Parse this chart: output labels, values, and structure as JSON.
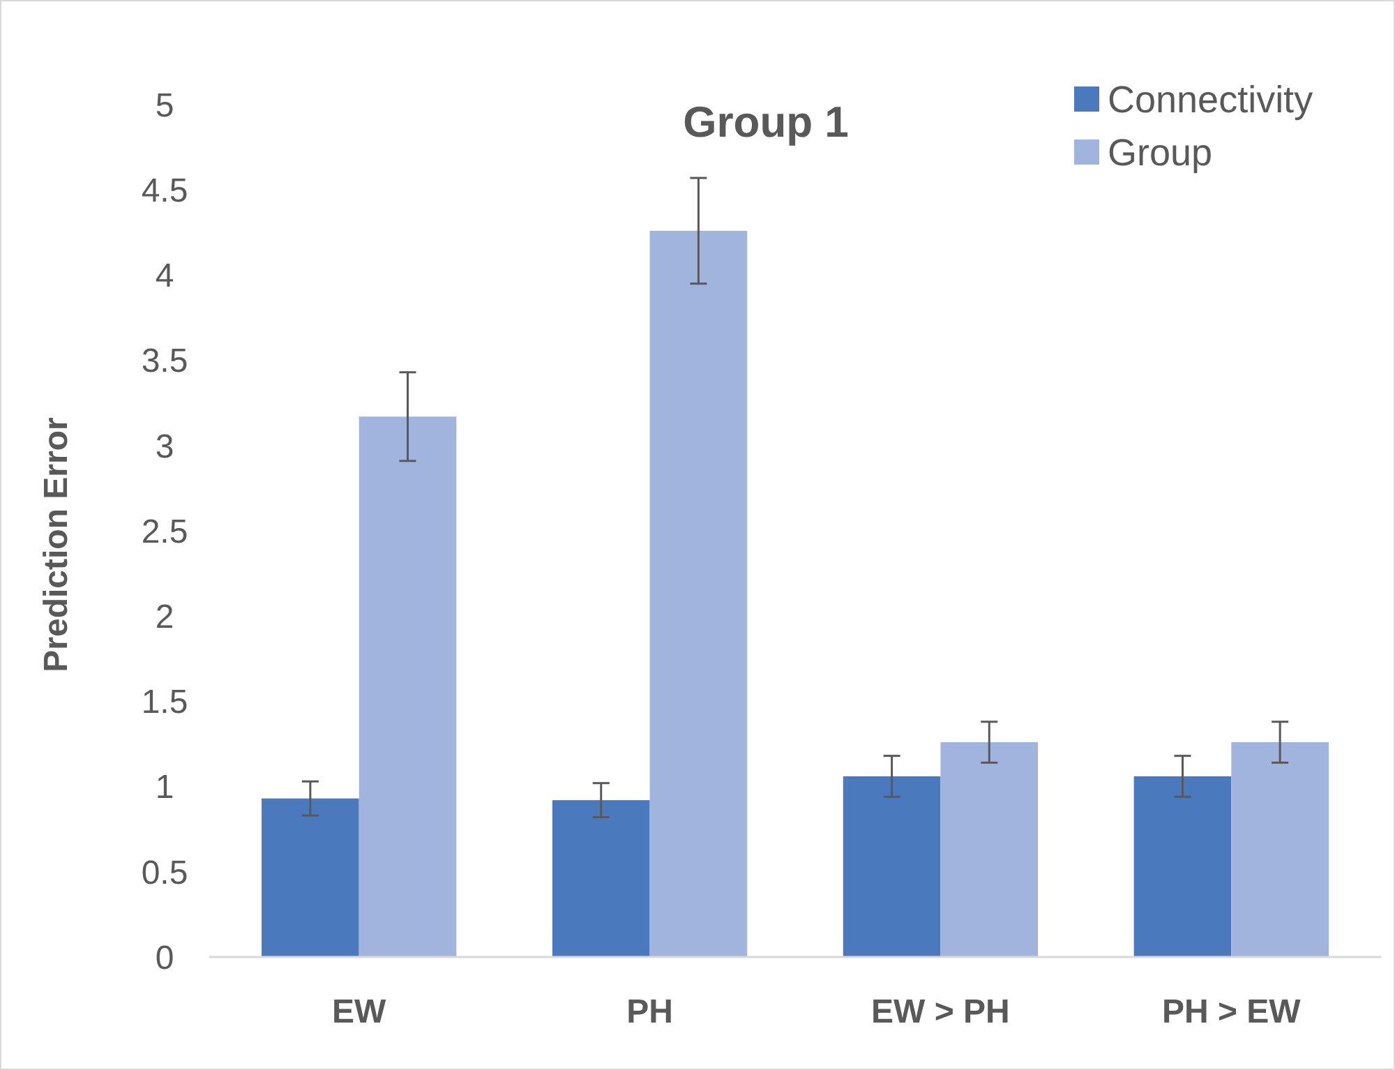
{
  "chart_data": {
    "type": "bar",
    "title": "Group 1",
    "ylabel": "Prediction Error",
    "categories": [
      "EW",
      "PH",
      "EW > PH",
      "PH > EW"
    ],
    "series": [
      {
        "name": "Connectivity",
        "color": "#4a7abd",
        "values": [
          0.93,
          0.92,
          1.06,
          1.06
        ],
        "errors": [
          0.1,
          0.1,
          0.12,
          0.12
        ]
      },
      {
        "name": "Group",
        "color": "#a0b4dd",
        "values": [
          3.17,
          4.26,
          1.26,
          1.26
        ],
        "errors": [
          0.26,
          0.31,
          0.12,
          0.12
        ]
      }
    ],
    "ylim": [
      0,
      5
    ],
    "yticks": [
      0,
      0.5,
      1,
      1.5,
      2,
      2.5,
      3,
      3.5,
      4,
      4.5,
      5
    ],
    "legend": "top right"
  }
}
